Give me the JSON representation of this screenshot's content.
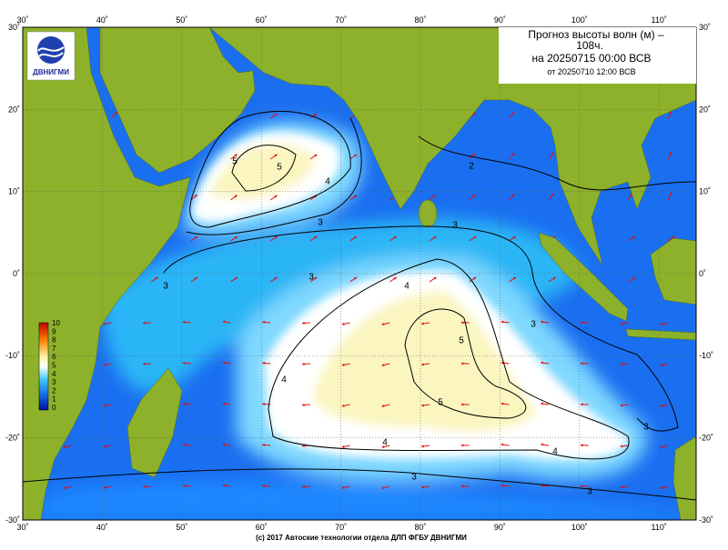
{
  "header": {
    "title_line1": "Прогноз высоты волн (м) –",
    "title_line2": "108ч.",
    "title_line3": "на 20250715 00:00 ВСВ",
    "title_line4": "от 20250710 12:00 ВСВ"
  },
  "logo": "ДВНИГМИ",
  "lon_labels": [
    "30˚",
    "40˚",
    "50˚",
    "60˚",
    "70˚",
    "80˚",
    "90˚",
    "100˚",
    "110˚"
  ],
  "lat_labels": [
    "30˚",
    "20˚",
    "10˚",
    "0˚",
    "-10˚",
    "-20˚",
    "-30˚"
  ],
  "colorbar_labels": [
    "10",
    "9",
    "8",
    "7",
    "6",
    "5",
    "4",
    "3",
    "2",
    "1",
    "0"
  ],
  "contour_labels": [
    "5",
    "5",
    "4",
    "3",
    "3",
    "2",
    "3",
    "4",
    "5",
    "5",
    "4",
    "4",
    "3",
    "3",
    "3",
    "3",
    "3",
    "4"
  ],
  "footer": "(c) 2017 Автоские технологии отдела ДЛП ФГБУ ДВНИГМИ"
}
